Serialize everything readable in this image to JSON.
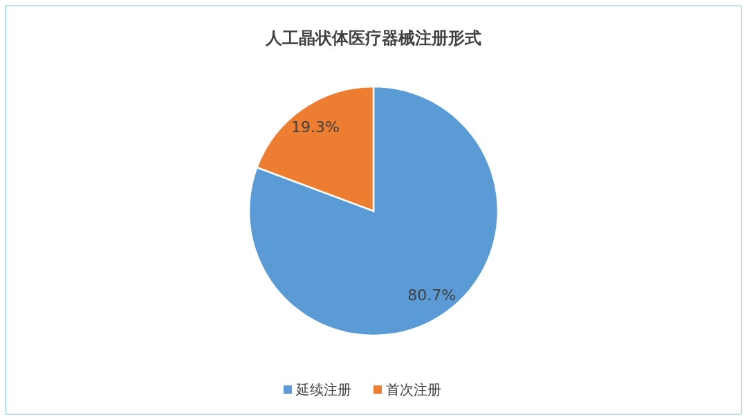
{
  "chart_data": {
    "type": "pie",
    "title": "人工晶状体医疗器械注册形式",
    "categories": [
      "延续注册",
      "首次注册"
    ],
    "values": [
      80.7,
      19.3
    ],
    "colors": [
      "#5b9bd5",
      "#ed7d31"
    ],
    "value_labels": [
      "80.7%",
      "19.3%"
    ],
    "legend": "bottom"
  }
}
